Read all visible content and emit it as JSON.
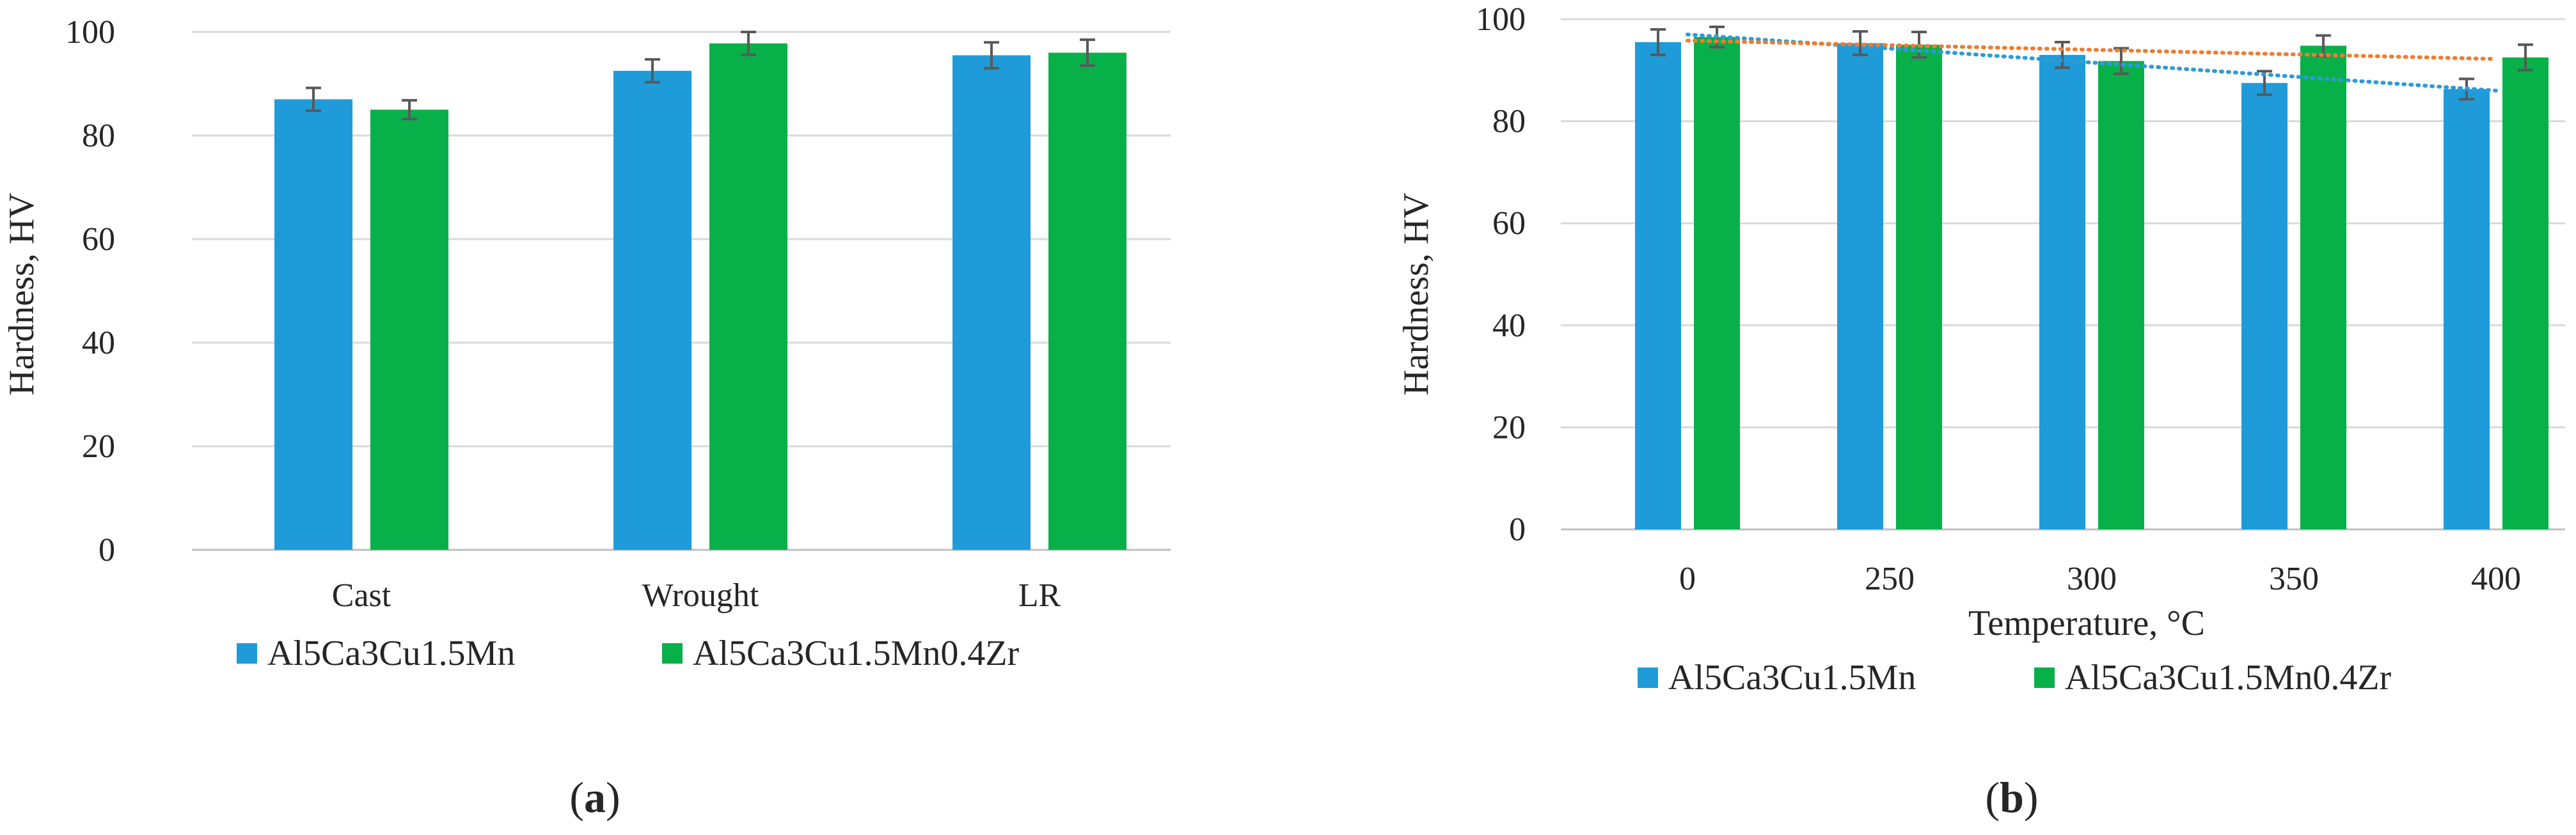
{
  "chart_data": [
    {
      "type": "bar",
      "panel": "a",
      "categories": [
        "Cast",
        "Wrought",
        "LR"
      ],
      "series": [
        {
          "name": "Al5Ca3Cu1.5Mn",
          "color": "#1f9bd9",
          "values": [
            87,
            92.5,
            95.5
          ],
          "errors": [
            2.2,
            2.2,
            2.5
          ]
        },
        {
          "name": "Al5Ca3Cu1.5Mn0.4Zr",
          "color": "#08b04a",
          "values": [
            85,
            97.8,
            96
          ],
          "errors": [
            1.8,
            2.2,
            2.5
          ]
        }
      ],
      "xlabel": "",
      "ylabel": "Hardness, HV",
      "ylim": [
        0,
        100
      ],
      "yticks": [
        "0",
        "20",
        "40",
        "60",
        "80",
        "100"
      ],
      "legend": "bottom"
    },
    {
      "type": "bar",
      "panel": "b",
      "categories": [
        "0",
        "250",
        "300",
        "350",
        "400"
      ],
      "series": [
        {
          "name": "Al5Ca3Cu1.5Mn",
          "color": "#1f9bd9",
          "values": [
            95.5,
            95.3,
            93,
            87.5,
            86.3
          ],
          "errors": [
            2.5,
            2.3,
            2.5,
            2.3,
            2.0
          ]
        },
        {
          "name": "Al5Ca3Cu1.5Mn0.4Zr",
          "color": "#08b04a",
          "values": [
            96.5,
            95,
            91.8,
            94.8,
            92.5
          ],
          "errors": [
            2.0,
            2.5,
            2.5,
            2.0,
            2.5
          ]
        }
      ],
      "trendlines": [
        {
          "series": "Al5Ca3Cu1.5Mn",
          "color": "#2e9bd6",
          "start": 97.0,
          "end": 86.0
        },
        {
          "series": "Al5Ca3Cu1.5Mn0.4Zr",
          "color": "#ed7d31",
          "start": 95.8,
          "end": 92.2
        }
      ],
      "xlabel": "Temperature, °C",
      "ylabel": "Hardness, HV",
      "ylim": [
        0,
        100
      ],
      "yticks": [
        "0",
        "20",
        "40",
        "60",
        "80",
        "100"
      ],
      "legend": "bottom"
    }
  ],
  "panel_labels": {
    "a": {
      "open": "(",
      "letter": "a",
      "close": ")"
    },
    "b": {
      "open": "(",
      "letter": "b",
      "close": ")"
    }
  }
}
